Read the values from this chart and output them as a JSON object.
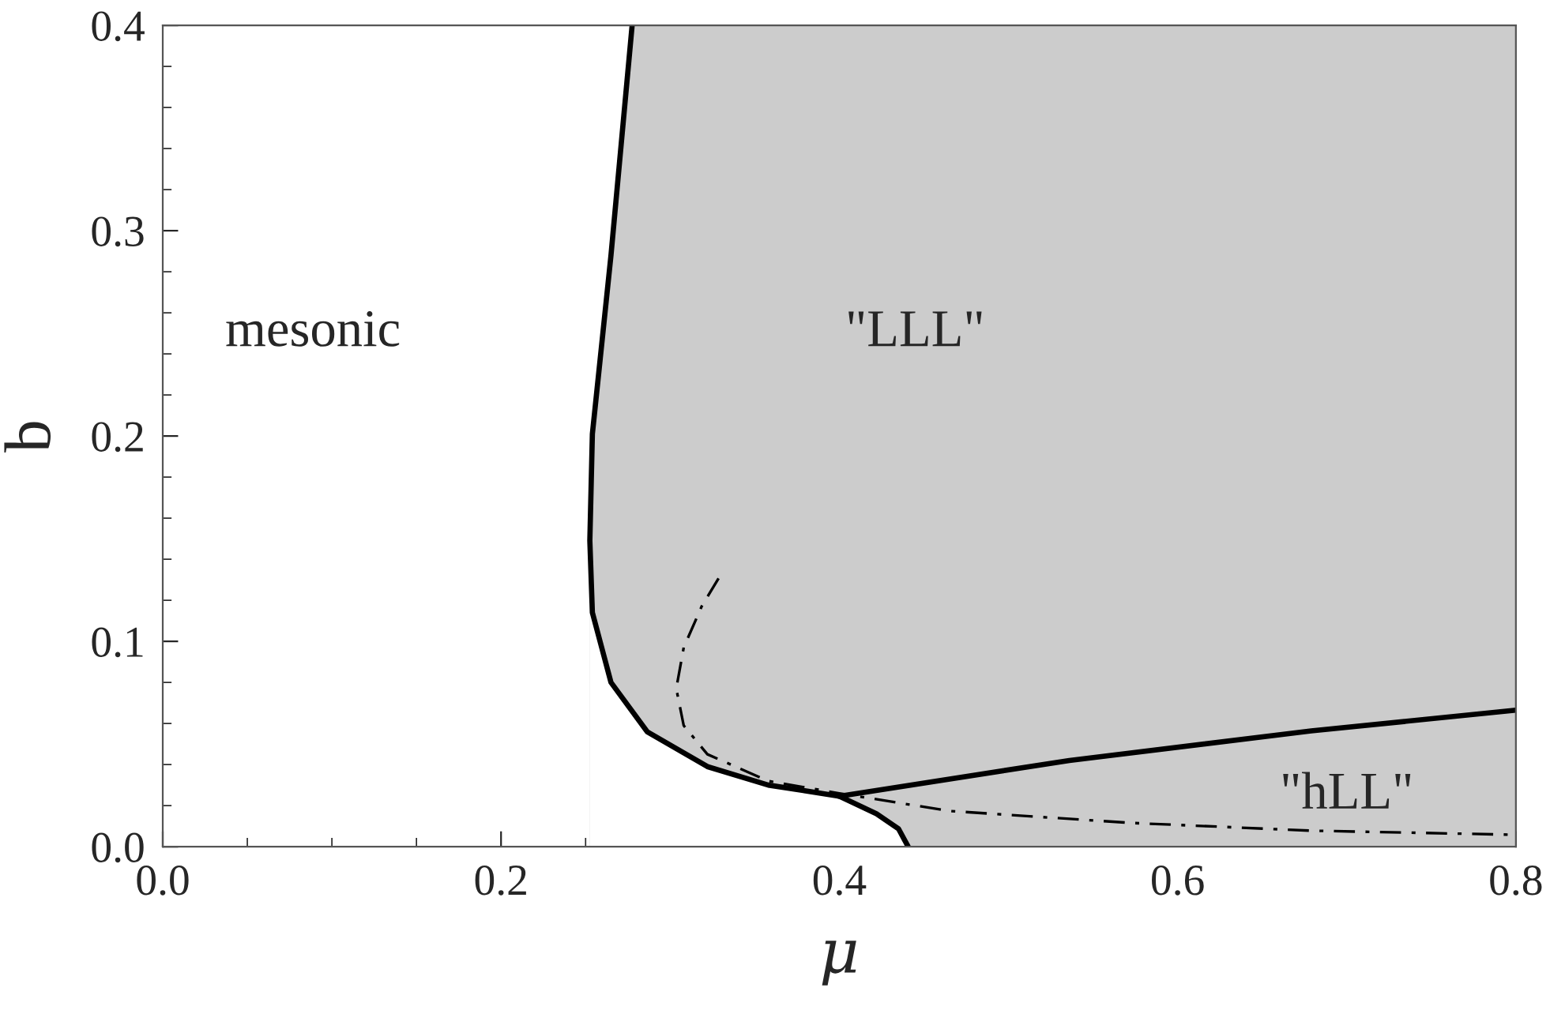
{
  "chart_data": {
    "type": "line",
    "xlabel": "μ",
    "ylabel": "b",
    "xlim": [
      0.0,
      0.8
    ],
    "ylim": [
      0.0,
      0.4
    ],
    "xticks": [
      {
        "value": 0.0,
        "label": "0.0"
      },
      0.2,
      0.4,
      0.6,
      0.8
    ],
    "yticks": [
      {
        "value": 0.0,
        "label": "0.0"
      },
      0.1,
      0.2,
      0.3,
      0.4
    ],
    "legend": false,
    "marker": "none",
    "series": [
      {
        "type": "area",
        "color": "#cccccc",
        "x": [
          0.2525,
          0.254,
          0.265,
          0.2775,
          0.8
        ],
        "values": [
          0.149,
          0.201,
          0.288,
          0.4,
          0.4
        ]
      },
      {
        "type": "area",
        "color": "#ffffff",
        "x": [
          0.2525,
          0.254,
          0.265,
          0.2864,
          0.322,
          0.358,
          0.4,
          0.422,
          0.435,
          0.4407
        ],
        "values": [
          0.149,
          0.114,
          0.08,
          0.056,
          0.039,
          0.03,
          0.0246,
          0.016,
          0.0087,
          0.0
        ]
      },
      {
        "color": "#000000",
        "line_style": "solid",
        "x": [
          0.2775,
          0.265,
          0.254,
          0.2525,
          0.254,
          0.265,
          0.2864,
          0.322,
          0.358,
          0.4,
          0.422,
          0.435,
          0.4407
        ],
        "values": [
          0.4,
          0.288,
          0.201,
          0.149,
          0.114,
          0.08,
          0.056,
          0.039,
          0.03,
          0.0246,
          0.016,
          0.0087,
          0.0
        ]
      },
      {
        "color": "#000000",
        "line_style": "solid",
        "x": [
          0.4,
          0.536,
          0.679,
          0.8
        ],
        "values": [
          0.0246,
          0.042,
          0.0564,
          0.0665
        ]
      },
      {
        "color": "#000000",
        "line_style": "dashdot",
        "x": [
          0.3286,
          0.3186,
          0.308,
          0.3036,
          0.308,
          0.322,
          0.358,
          0.4,
          0.465,
          0.572,
          0.679,
          0.8
        ],
        "values": [
          0.1307,
          0.117,
          0.097,
          0.077,
          0.059,
          0.045,
          0.032,
          0.026,
          0.0174,
          0.0116,
          0.0078,
          0.0058
        ]
      }
    ],
    "annotations": [
      "mesonic",
      "\"LLL\"",
      "\"hLL\""
    ]
  }
}
